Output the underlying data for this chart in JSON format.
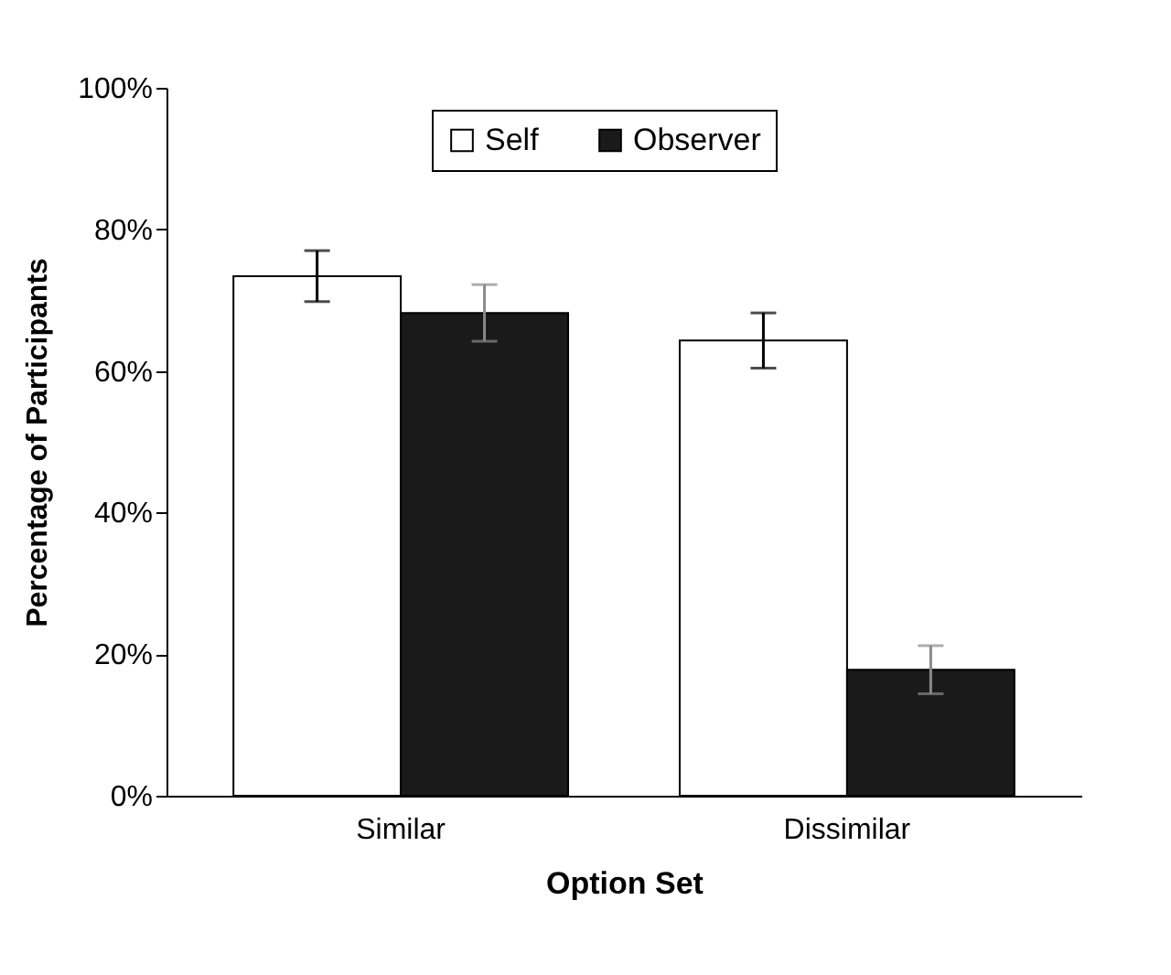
{
  "chart_data": {
    "type": "bar",
    "xlabel": "Option Set",
    "ylabel": "Percentage of Participants",
    "categories": [
      "Similar",
      "Dissimilar"
    ],
    "series": [
      {
        "name": "Self",
        "color": "#ffffff",
        "values": [
          73.4,
          64.3
        ],
        "errors": [
          3.6,
          3.9
        ]
      },
      {
        "name": "Observer",
        "color": "#1a1a1a",
        "values": [
          68.2,
          17.8
        ],
        "errors": [
          4,
          3.4
        ]
      }
    ],
    "ylim": [
      0,
      100
    ],
    "yticks": [
      {
        "value": 0,
        "label": "0%"
      },
      {
        "value": 20,
        "label": "20%"
      },
      {
        "value": 40,
        "label": "40%"
      },
      {
        "value": 60,
        "label": "60%"
      },
      {
        "value": 80,
        "label": "80%"
      },
      {
        "value": 100,
        "label": "100%"
      }
    ],
    "grid": false,
    "legend": "top"
  }
}
